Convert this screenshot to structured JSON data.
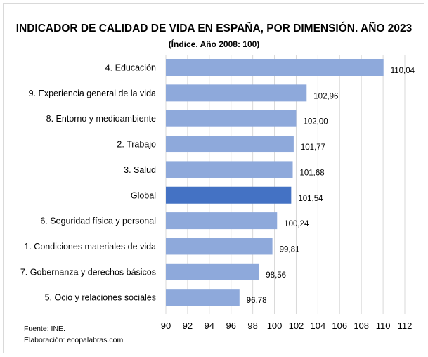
{
  "chart_data": {
    "type": "bar",
    "orientation": "horizontal",
    "title": "INDICADOR DE CALIDAD DE VIDA EN ESPAÑA, POR DIMENSIÓN. AÑO 2023",
    "subtitle": "(Índice. Año 2008: 100)",
    "categories": [
      "4. Educación",
      "9. Experiencia general de la vida",
      "8. Entorno y medioambiente",
      "2. Trabajo",
      "3. Salud",
      "Global",
      "6. Seguridad física y personal",
      "1. Condiciones materiales de vida",
      "7. Gobernanza y derechos básicos",
      "5. Ocio y relaciones sociales"
    ],
    "values": [
      110.04,
      102.96,
      102.0,
      101.77,
      101.68,
      101.54,
      100.24,
      99.81,
      98.56,
      96.78
    ],
    "value_labels": [
      "110,04",
      "102,96",
      "102,00",
      "101,77",
      "101,68",
      "101,54",
      "100,24",
      "99,81",
      "98,56",
      "96,78"
    ],
    "highlight": "Global",
    "xlim": [
      90,
      112
    ],
    "xticks": [
      "90",
      "92",
      "94",
      "96",
      "98",
      "100",
      "102",
      "104",
      "106",
      "108",
      "110",
      "112"
    ],
    "grid": true,
    "colors": {
      "bar": "#8EA9DB",
      "highlight": "#4472C4",
      "grid": "#d9d9d9"
    }
  },
  "footer": {
    "source": "Fuente: INE.",
    "credit": "Elaboración: ecopalabras.com"
  }
}
